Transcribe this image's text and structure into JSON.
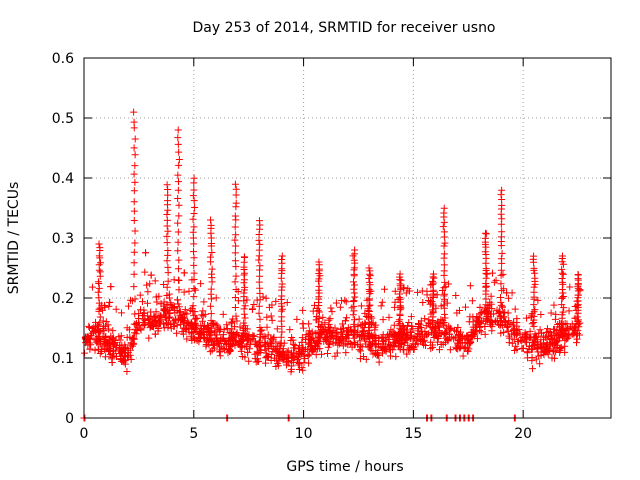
{
  "chart_data": {
    "type": "scatter",
    "title": "Day 253 of 2014, SRMTID for receiver usno",
    "xlabel": "GPS time / hours",
    "ylabel": "SRMTID / TECUs",
    "xlim": [
      0,
      24
    ],
    "ylim": [
      0,
      0.6
    ],
    "xticks": [
      0,
      5,
      10,
      15,
      20
    ],
    "yticks": [
      0,
      0.1,
      0.2,
      0.3,
      0.4,
      0.5,
      0.6
    ],
    "xtick_labels": [
      "0",
      "5",
      "10",
      "15",
      "20"
    ],
    "ytick_labels": [
      "0",
      "0.1",
      "0.2",
      "0.3",
      "0.4",
      "0.5",
      "0.6"
    ],
    "grid": true,
    "marker": "+",
    "color": "#ff0000",
    "series": [
      {
        "name": "SRMTID",
        "baseline": [
          [
            0.0,
            0.13
          ],
          [
            0.5,
            0.14
          ],
          [
            1.0,
            0.13
          ],
          [
            1.5,
            0.12
          ],
          [
            2.0,
            0.1
          ],
          [
            2.5,
            0.17
          ],
          [
            3.0,
            0.16
          ],
          [
            3.5,
            0.17
          ],
          [
            4.0,
            0.17
          ],
          [
            4.5,
            0.16
          ],
          [
            5.0,
            0.15
          ],
          [
            5.5,
            0.14
          ],
          [
            6.0,
            0.13
          ],
          [
            6.5,
            0.13
          ],
          [
            7.0,
            0.13
          ],
          [
            7.5,
            0.13
          ],
          [
            8.0,
            0.12
          ],
          [
            8.5,
            0.12
          ],
          [
            9.0,
            0.11
          ],
          [
            9.5,
            0.1
          ],
          [
            10.0,
            0.11
          ],
          [
            10.5,
            0.13
          ],
          [
            11.0,
            0.14
          ],
          [
            11.5,
            0.13
          ],
          [
            12.0,
            0.14
          ],
          [
            12.5,
            0.13
          ],
          [
            13.0,
            0.13
          ],
          [
            13.5,
            0.12
          ],
          [
            14.0,
            0.13
          ],
          [
            14.5,
            0.14
          ],
          [
            15.0,
            0.13
          ],
          [
            15.5,
            0.14
          ],
          [
            16.0,
            0.14
          ],
          [
            16.5,
            0.14
          ],
          [
            17.0,
            0.13
          ],
          [
            17.5,
            0.13
          ],
          [
            18.0,
            0.16
          ],
          [
            18.5,
            0.17
          ],
          [
            19.0,
            0.17
          ],
          [
            19.5,
            0.14
          ],
          [
            20.0,
            0.13
          ],
          [
            20.5,
            0.12
          ],
          [
            21.0,
            0.12
          ],
          [
            21.5,
            0.13
          ],
          [
            22.0,
            0.14
          ],
          [
            22.5,
            0.15
          ]
        ],
        "peaks": [
          [
            0.7,
            0.29
          ],
          [
            2.3,
            0.51
          ],
          [
            3.8,
            0.39
          ],
          [
            4.3,
            0.48
          ],
          [
            5.0,
            0.4
          ],
          [
            5.8,
            0.33
          ],
          [
            6.9,
            0.39
          ],
          [
            7.3,
            0.27
          ],
          [
            8.0,
            0.33
          ],
          [
            9.0,
            0.27
          ],
          [
            10.7,
            0.26
          ],
          [
            12.3,
            0.28
          ],
          [
            13.0,
            0.25
          ],
          [
            14.4,
            0.24
          ],
          [
            15.9,
            0.24
          ],
          [
            16.4,
            0.35
          ],
          [
            18.3,
            0.31
          ],
          [
            19.0,
            0.38
          ],
          [
            20.5,
            0.27
          ],
          [
            21.8,
            0.27
          ],
          [
            22.5,
            0.24
          ]
        ],
        "zeros": [
          0.0,
          6.5,
          9.3,
          15.6,
          15.8,
          16.5,
          16.9,
          17.1,
          17.3,
          17.5,
          17.7,
          19.6
        ],
        "x_range": [
          0.0,
          22.6
        ],
        "point_count": 1800
      }
    ]
  }
}
